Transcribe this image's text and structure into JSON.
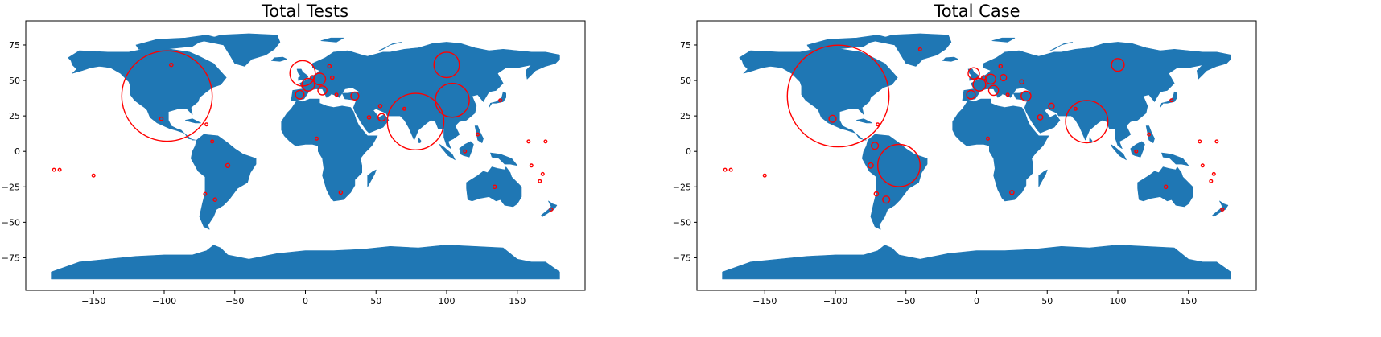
{
  "colors": {
    "land": "#1f77b4",
    "marker": "#ff0000",
    "frame": "#000000"
  },
  "chart_data": [
    {
      "type": "scatter",
      "title": "Total Tests",
      "xlim": [
        -198,
        198
      ],
      "ylim": [
        -98,
        92
      ],
      "xticks": [
        -150,
        -100,
        -50,
        0,
        50,
        100,
        150
      ],
      "xtick_labels": [
        "−150",
        "−100",
        "−50",
        "0",
        "50",
        "100",
        "150"
      ],
      "yticks": [
        -75,
        -50,
        -25,
        0,
        25,
        50,
        75
      ],
      "ytick_labels": [
        "−75",
        "−50",
        "−25",
        "0",
        "25",
        "50",
        "75"
      ],
      "grid": false,
      "markers": [
        {
          "lon": -98,
          "lat": 39,
          "r": 32
        },
        {
          "lon": 78,
          "lat": 21,
          "r": 20
        },
        {
          "lon": 104,
          "lat": 36,
          "r": 12
        },
        {
          "lon": 100,
          "lat": 61,
          "r": 9
        },
        {
          "lon": -2,
          "lat": 55,
          "r": 9
        },
        {
          "lon": 2,
          "lat": 47,
          "r": 4.5
        },
        {
          "lon": 10,
          "lat": 51,
          "r": 4.2
        },
        {
          "lon": 12,
          "lat": 43,
          "r": 3.2
        },
        {
          "lon": -4,
          "lat": 40,
          "r": 3
        },
        {
          "lon": 35,
          "lat": 39,
          "r": 2.8
        },
        {
          "lon": 54,
          "lat": 24,
          "r": 2.6
        },
        {
          "lon": -95,
          "lat": 61,
          "r": 1.2
        },
        {
          "lon": -55,
          "lat": -10,
          "r": 1.4
        },
        {
          "lon": 17,
          "lat": 60,
          "r": 1.2
        },
        {
          "lon": 5,
          "lat": 52,
          "r": 1.4
        },
        {
          "lon": 19,
          "lat": 52,
          "r": 1.2
        },
        {
          "lon": 22,
          "lat": 40,
          "r": 1
        },
        {
          "lon": 45,
          "lat": 24,
          "r": 1.2
        },
        {
          "lon": 53,
          "lat": 32,
          "r": 1.2
        },
        {
          "lon": 70,
          "lat": 30,
          "r": 1
        },
        {
          "lon": -102,
          "lat": 23,
          "r": 1.2
        },
        {
          "lon": -70,
          "lat": 19,
          "r": 1
        },
        {
          "lon": -66,
          "lat": 7,
          "r": 1
        },
        {
          "lon": -64,
          "lat": -34,
          "r": 1.2
        },
        {
          "lon": -71,
          "lat": -30,
          "r": 1
        },
        {
          "lon": 8,
          "lat": 9,
          "r": 1
        },
        {
          "lon": 25,
          "lat": -29,
          "r": 1.2
        },
        {
          "lon": 134,
          "lat": -25,
          "r": 1.2
        },
        {
          "lon": 174,
          "lat": -41,
          "r": 1
        },
        {
          "lon": 122,
          "lat": 12,
          "r": 1
        },
        {
          "lon": 138,
          "lat": 36,
          "r": 1
        },
        {
          "lon": 113,
          "lat": 0,
          "r": 1
        },
        {
          "lon": -150,
          "lat": -17,
          "r": 1
        },
        {
          "lon": -178,
          "lat": -13,
          "r": 1
        },
        {
          "lon": -174,
          "lat": -13,
          "r": 1
        },
        {
          "lon": 160,
          "lat": -10,
          "r": 1
        },
        {
          "lon": 166,
          "lat": -21,
          "r": 1
        },
        {
          "lon": 168,
          "lat": -16,
          "r": 1
        },
        {
          "lon": 170,
          "lat": 7,
          "r": 1
        },
        {
          "lon": 158,
          "lat": 7,
          "r": 1
        }
      ]
    },
    {
      "type": "scatter",
      "title": "Total Case",
      "xlim": [
        -198,
        198
      ],
      "ylim": [
        -98,
        92
      ],
      "xticks": [
        -150,
        -100,
        -50,
        0,
        50,
        100,
        150
      ],
      "xtick_labels": [
        "−150",
        "−100",
        "−50",
        "0",
        "50",
        "100",
        "150"
      ],
      "yticks": [
        -75,
        -50,
        -25,
        0,
        25,
        50,
        75
      ],
      "ytick_labels": [
        "−75",
        "−50",
        "−25",
        "0",
        "25",
        "50",
        "75"
      ],
      "grid": false,
      "markers": [
        {
          "lon": -98,
          "lat": 39,
          "r": 36
        },
        {
          "lon": -55,
          "lat": -10,
          "r": 15
        },
        {
          "lon": 78,
          "lat": 21,
          "r": 15
        },
        {
          "lon": 100,
          "lat": 61,
          "r": 4.5
        },
        {
          "lon": 2,
          "lat": 47,
          "r": 4.5
        },
        {
          "lon": -2,
          "lat": 55,
          "r": 4
        },
        {
          "lon": 35,
          "lat": 39,
          "r": 3.5
        },
        {
          "lon": 12,
          "lat": 43,
          "r": 3.5
        },
        {
          "lon": 10,
          "lat": 51,
          "r": 3.5
        },
        {
          "lon": -4,
          "lat": 40,
          "r": 3
        },
        {
          "lon": -102,
          "lat": 23,
          "r": 2.5
        },
        {
          "lon": -64,
          "lat": -34,
          "r": 2.5
        },
        {
          "lon": -72,
          "lat": 4,
          "r": 2.5
        },
        {
          "lon": 19,
          "lat": 52,
          "r": 2.2
        },
        {
          "lon": 53,
          "lat": 32,
          "r": 2
        },
        {
          "lon": 45,
          "lat": 24,
          "r": 1.8
        },
        {
          "lon": -75,
          "lat": -10,
          "r": 1.8
        },
        {
          "lon": -71,
          "lat": -30,
          "r": 1.5
        },
        {
          "lon": 25,
          "lat": -29,
          "r": 1.5
        },
        {
          "lon": 32,
          "lat": 49,
          "r": 1.5
        },
        {
          "lon": 5,
          "lat": 52,
          "r": 1.4
        },
        {
          "lon": 17,
          "lat": 60,
          "r": 1.2
        },
        {
          "lon": 22,
          "lat": 40,
          "r": 1
        },
        {
          "lon": 70,
          "lat": 30,
          "r": 1
        },
        {
          "lon": -70,
          "lat": 19,
          "r": 1
        },
        {
          "lon": 8,
          "lat": 9,
          "r": 1
        },
        {
          "lon": 134,
          "lat": -25,
          "r": 1.2
        },
        {
          "lon": 174,
          "lat": -41,
          "r": 1
        },
        {
          "lon": 122,
          "lat": 12,
          "r": 1
        },
        {
          "lon": 138,
          "lat": 36,
          "r": 1
        },
        {
          "lon": 113,
          "lat": 0,
          "r": 1
        },
        {
          "lon": -150,
          "lat": -17,
          "r": 1
        },
        {
          "lon": -178,
          "lat": -13,
          "r": 1
        },
        {
          "lon": -174,
          "lat": -13,
          "r": 1
        },
        {
          "lon": 160,
          "lat": -10,
          "r": 1
        },
        {
          "lon": 166,
          "lat": -21,
          "r": 1
        },
        {
          "lon": 168,
          "lat": -16,
          "r": 1
        },
        {
          "lon": 170,
          "lat": 7,
          "r": 1
        },
        {
          "lon": 158,
          "lat": 7,
          "r": 1
        },
        {
          "lon": -40,
          "lat": 72,
          "r": 1
        }
      ]
    }
  ]
}
